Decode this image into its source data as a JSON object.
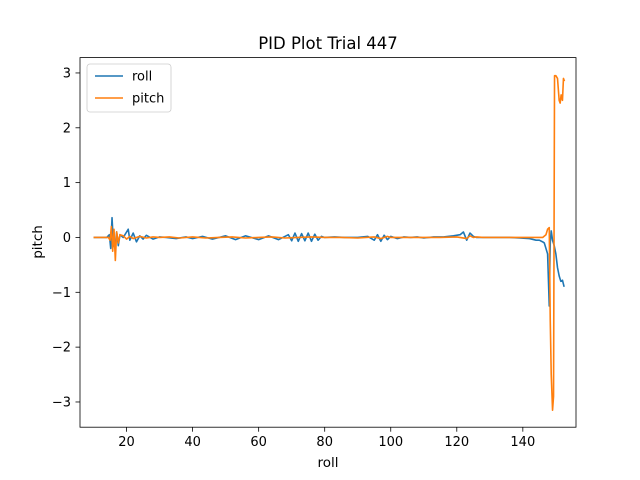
{
  "chart_data": {
    "type": "line",
    "title": "PID Plot Trial 447",
    "xlabel": "roll",
    "ylabel": "pitch",
    "xlim": [
      5.9,
      156.1
    ],
    "ylim": [
      -3.46,
      3.28
    ],
    "xticks": [
      20,
      40,
      60,
      80,
      100,
      120,
      140
    ],
    "yticks": [
      -3,
      -2,
      -1,
      0,
      1,
      2,
      3
    ],
    "grid": false,
    "legend_position": "top-left",
    "series": [
      {
        "name": "roll",
        "color": "#1f77b4",
        "x": [
          10,
          12,
          14,
          14.8,
          15.2,
          15.6,
          16,
          16.5,
          17,
          17.5,
          18,
          19,
          20,
          20.5,
          21,
          22,
          23,
          24,
          25,
          26,
          28,
          30,
          32,
          35,
          38,
          40,
          43,
          46,
          50,
          53,
          56,
          60,
          63,
          66,
          69,
          70,
          71,
          72,
          73,
          74,
          75,
          76,
          77,
          78,
          79,
          80,
          83,
          86,
          90,
          93,
          95,
          96,
          97,
          98,
          99,
          100,
          102,
          104,
          106,
          108,
          110,
          113,
          116,
          119,
          121,
          122,
          123,
          124,
          125,
          126,
          128,
          130,
          133,
          136,
          139,
          142,
          144,
          145,
          146,
          146.5,
          147,
          147.5,
          148,
          148.3,
          148.6,
          149,
          149.5,
          150,
          150.5,
          151,
          151.5,
          152,
          152.5
        ],
        "y": [
          0,
          0,
          0,
          0.05,
          -0.2,
          0.36,
          -0.1,
          -0.2,
          0.1,
          -0.15,
          0.05,
          0,
          0.1,
          0.15,
          -0.05,
          0.08,
          -0.08,
          0.03,
          -0.03,
          0.04,
          -0.03,
          0.01,
          0,
          -0.02,
          0.01,
          -0.02,
          0.02,
          -0.03,
          0.03,
          -0.04,
          0.03,
          -0.04,
          0.03,
          -0.04,
          0.05,
          -0.06,
          0.08,
          -0.07,
          0.07,
          -0.06,
          0.08,
          -0.07,
          0.06,
          -0.05,
          0.02,
          0,
          0.01,
          0,
          0,
          0.02,
          -0.05,
          0.05,
          -0.07,
          0.04,
          -0.04,
          0.02,
          -0.02,
          0.01,
          0,
          0.01,
          -0.01,
          0.01,
          0.01,
          0.03,
          0.05,
          0.1,
          -0.05,
          0.08,
          0.02,
          0,
          0,
          0,
          0,
          0,
          -0.01,
          -0.02,
          -0.05,
          -0.05,
          -0.08,
          -0.1,
          -0.2,
          -0.3,
          -1.25,
          -0.1,
          0.12,
          -0.05,
          -0.15,
          -0.3,
          -0.55,
          -0.7,
          -0.8,
          -0.78,
          -0.9
        ]
      },
      {
        "name": "pitch",
        "color": "#ff7f0e",
        "x": [
          10,
          13,
          14.5,
          15,
          15.4,
          15.8,
          16.2,
          16.6,
          17,
          17.5,
          18,
          19,
          20,
          21,
          22,
          24,
          26,
          28,
          30,
          33,
          36,
          40,
          44,
          48,
          52,
          56,
          60,
          64,
          68,
          72,
          76,
          80,
          85,
          90,
          95,
          97,
          99,
          100,
          102,
          105,
          110,
          115,
          120,
          123,
          124,
          125,
          126,
          128,
          132,
          136,
          140,
          143,
          145,
          146,
          147,
          147.5,
          148,
          148.3,
          148.6,
          149,
          149.3,
          149.6,
          150,
          150.5,
          151,
          151.3,
          151.6,
          152,
          152.3,
          152.6
        ],
        "y": [
          0,
          0,
          0,
          -0.05,
          0.2,
          -0.25,
          0.15,
          -0.42,
          0.1,
          -0.1,
          0.05,
          0.03,
          -0.03,
          0.02,
          -0.02,
          0.02,
          -0.01,
          0.01,
          0,
          0.01,
          -0.01,
          0.01,
          -0.01,
          0,
          0.01,
          -0.01,
          0,
          0.01,
          -0.01,
          0,
          0.01,
          0,
          0,
          -0.01,
          0.01,
          -0.02,
          0.02,
          0,
          0,
          0,
          0,
          0,
          0.01,
          -0.02,
          0.03,
          0,
          0.01,
          0,
          0,
          0,
          0,
          0,
          0,
          0,
          0.05,
          0.15,
          0.18,
          -1.5,
          -2.5,
          -3.15,
          -2.9,
          2.95,
          2.95,
          2.9,
          2.5,
          2.45,
          2.6,
          2.5,
          2.9,
          2.85
        ]
      }
    ]
  }
}
